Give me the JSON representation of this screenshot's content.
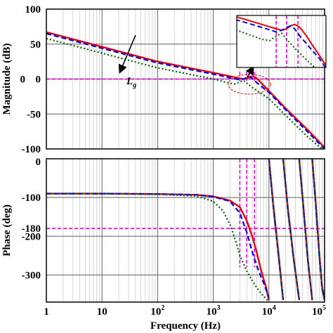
{
  "chart_data": [
    {
      "type": "line",
      "panel": "magnitude",
      "ylabel": "Magnitude (dB)",
      "xscale": "log",
      "xlim": [
        1,
        100000
      ],
      "ylim": [
        -100,
        100
      ],
      "yticks": [
        "100",
        "50",
        "0",
        "-50",
        "-100"
      ],
      "grid": true,
      "annotations": [
        {
          "text": "0",
          "color": "#e600e6"
        },
        {
          "text": "L",
          "sub": "g"
        }
      ],
      "reference_line": {
        "y": 0,
        "color": "#e600e6",
        "style": "dashed"
      },
      "markers_x": [
        3000,
        4000,
        5500
      ],
      "series": [
        {
          "color": "#e60000",
          "style": "solid",
          "x": [
            1,
            10,
            100,
            1000,
            2000,
            3000,
            3500,
            4000,
            4500,
            5000,
            5500,
            6000,
            7000,
            8000,
            10000,
            20000,
            50000,
            100000
          ],
          "y": [
            67,
            46,
            25,
            9,
            4,
            1,
            0,
            1,
            3,
            4,
            3,
            1,
            -4,
            -9,
            -17,
            -42,
            -73,
            -98
          ]
        },
        {
          "color": "#0000e6",
          "style": "dashed",
          "x": [
            1,
            10,
            100,
            1000,
            2000,
            3000,
            3500,
            4000,
            4500,
            5000,
            5500,
            6000,
            7000,
            8000,
            10000,
            20000,
            50000,
            100000
          ],
          "y": [
            65,
            44,
            23,
            7,
            2,
            -1,
            0,
            2,
            3,
            1,
            -2,
            -5,
            -9,
            -13,
            -19,
            -44,
            -76,
            -100
          ]
        },
        {
          "color": "#006000",
          "style": "dotted",
          "x": [
            1,
            10,
            100,
            1000,
            2000,
            2500,
            3000,
            3500,
            4000,
            5000,
            7000,
            10000,
            20000,
            50000,
            100000
          ],
          "y": [
            58,
            37,
            16,
            0,
            -6,
            -7,
            -4,
            -2,
            -6,
            -12,
            -20,
            -28,
            -52,
            -83,
            -103
          ]
        }
      ]
    },
    {
      "type": "line",
      "panel": "phase",
      "xlabel": "Frequency (Hz)",
      "ylabel": "Phase (deg)",
      "xscale": "log",
      "xlim": [
        1,
        100000
      ],
      "ylim": [
        -370,
        0
      ],
      "xticks": [
        {
          "base": "1",
          "exp": ""
        },
        {
          "base": "10",
          "exp": ""
        },
        {
          "base": "10",
          "exp": "2"
        },
        {
          "base": "10",
          "exp": "3"
        },
        {
          "base": "10",
          "exp": "4"
        },
        {
          "base": "10",
          "exp": "5"
        }
      ],
      "yticks": [
        "0",
        "-100",
        "-180",
        "-200",
        "-300"
      ],
      "grid": true,
      "reference_line": {
        "y": -180,
        "color": "#e600e6",
        "style": "dashed"
      },
      "markers_x": [
        3000,
        4000,
        5500
      ],
      "series": [
        {
          "color": "#e60000",
          "style": "solid",
          "x": [
            1,
            10,
            100,
            500,
            1000,
            2000,
            3000,
            4000,
            5000,
            6000,
            7000,
            8000,
            9000,
            10000,
            10000,
            12000,
            15000,
            18000,
            18000,
            22000,
            28000,
            35000,
            35000,
            42000,
            50000,
            60000,
            60000,
            70000,
            80000,
            90000,
            100000
          ],
          "y": [
            -90,
            -90,
            -91,
            -93,
            -97,
            -108,
            -125,
            -160,
            -200,
            -240,
            -280,
            -310,
            -335,
            -365,
            0,
            -120,
            -250,
            -365,
            0,
            -130,
            -260,
            -365,
            0,
            -130,
            -260,
            -365,
            0,
            -120,
            -240,
            -330,
            -365
          ]
        },
        {
          "color": "#0000e6",
          "style": "dashed",
          "x": [
            1,
            10,
            100,
            500,
            1000,
            2000,
            3000,
            4000,
            5000,
            6000,
            7000,
            8000,
            9000,
            10000,
            10000,
            12000,
            15000,
            18000,
            18000,
            22000,
            28000,
            35000,
            35000,
            42000,
            50000,
            60000,
            60000,
            70000,
            80000,
            90000,
            100000
          ],
          "y": [
            -90,
            -90,
            -91,
            -93,
            -98,
            -110,
            -140,
            -190,
            -240,
            -275,
            -300,
            -320,
            -340,
            -360,
            0,
            -125,
            -255,
            -362,
            0,
            -135,
            -262,
            -362,
            0,
            -135,
            -262,
            -362,
            0,
            -125,
            -245,
            -335,
            -362
          ]
        },
        {
          "color": "#006000",
          "style": "dotted",
          "x": [
            1,
            10,
            100,
            500,
            1000,
            1500,
            2000,
            2500,
            3000,
            4000,
            5000,
            6000,
            7000,
            8000,
            9000,
            10000,
            10000,
            12000,
            15000,
            18000,
            18000,
            22000,
            28000,
            35000,
            35000,
            42000,
            50000,
            60000,
            60000,
            70000,
            80000,
            90000,
            100000
          ],
          "y": [
            -90,
            -90,
            -92,
            -96,
            -110,
            -135,
            -170,
            -210,
            -250,
            -290,
            -315,
            -332,
            -345,
            -355,
            -362,
            -368,
            0,
            -128,
            -258,
            -364,
            0,
            -138,
            -264,
            -364,
            0,
            -138,
            -264,
            -364,
            0,
            -128,
            -248,
            -338,
            -364
          ]
        }
      ]
    }
  ]
}
